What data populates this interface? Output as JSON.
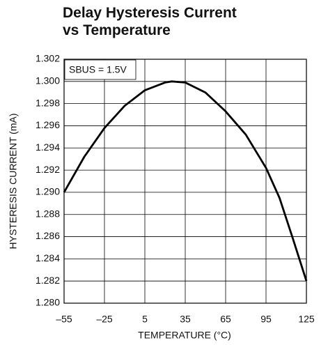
{
  "chart_data": {
    "type": "line",
    "title": "Delay Hysteresis Current vs Temperature",
    "xlabel": "TEMPERATURE (°C)",
    "ylabel": "HYSTERESIS CURRENT (mA)",
    "annotation": "SBUS = 1.5V",
    "x": [
      -55,
      -40,
      -25,
      -10,
      5,
      20,
      25,
      35,
      50,
      65,
      80,
      95,
      105,
      115,
      125
    ],
    "series": [
      {
        "name": "SBUS = 1.5V",
        "color": "#000000",
        "values": [
          1.29,
          1.2932,
          1.2958,
          1.2978,
          1.2992,
          1.2999,
          1.3,
          1.2999,
          1.299,
          1.2973,
          1.2952,
          1.2922,
          1.2895,
          1.2858,
          1.282
        ]
      }
    ],
    "xlim": [
      -55,
      125
    ],
    "xticks": [
      {
        "value": -55,
        "label": "–55"
      },
      {
        "value": -25,
        "label": "–25"
      },
      5,
      35,
      65,
      95,
      125
    ],
    "ylim": [
      1.28,
      1.302
    ],
    "yticks": [
      {
        "value": 1.28,
        "label": "1.280"
      },
      1.282,
      1.284,
      1.286,
      1.288,
      {
        "value": 1.29,
        "label": "1.290"
      },
      1.292,
      1.294,
      1.296,
      1.298,
      {
        "value": 1.3,
        "label": "1.300"
      },
      1.302
    ],
    "grid": true
  }
}
